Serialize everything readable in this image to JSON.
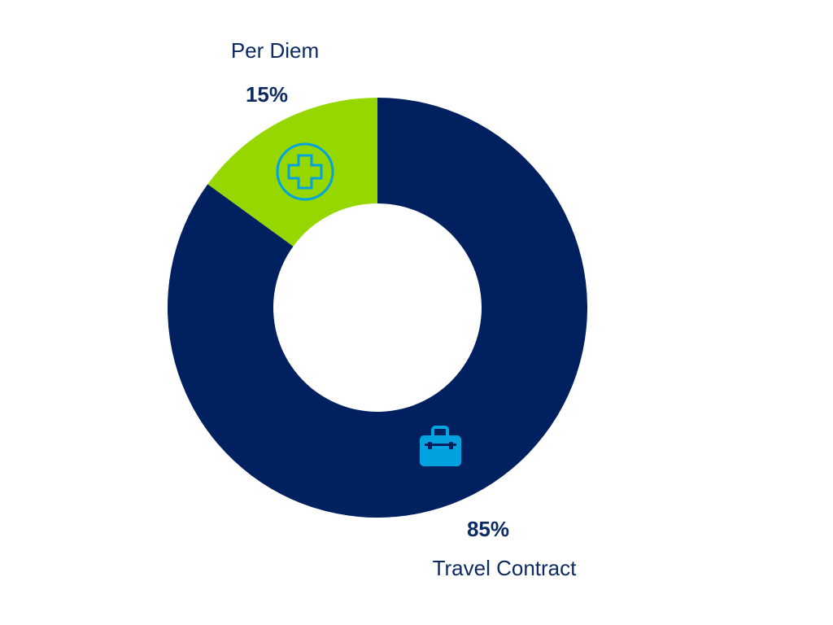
{
  "chart_data": {
    "type": "donut",
    "categories": [
      "Per Diem",
      "Travel Contract"
    ],
    "values": [
      15,
      85
    ],
    "value_labels": [
      "15%",
      "85%"
    ],
    "colors": [
      "#97d700",
      "#002060"
    ]
  }
}
